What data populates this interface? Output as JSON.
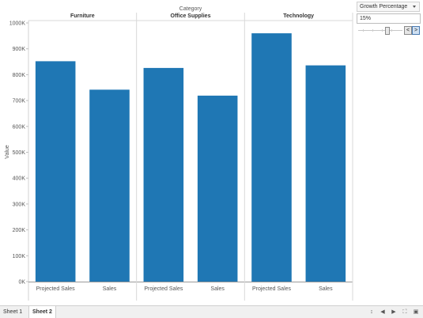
{
  "chart_data": {
    "type": "bar",
    "title": "Category",
    "ylabel": "Value",
    "ylim": [
      0,
      1000000
    ],
    "y_ticks": [
      "0K",
      "100K",
      "200K",
      "300K",
      "400K",
      "500K",
      "600K",
      "700K",
      "800K",
      "900K",
      "1000K"
    ],
    "panels": [
      {
        "name": "Furniture",
        "categories": [
          "Projected Sales",
          "Sales"
        ],
        "values": [
          852000,
          742000
        ]
      },
      {
        "name": "Office Supplies",
        "categories": [
          "Projected Sales",
          "Sales"
        ],
        "values": [
          826000,
          719000
        ]
      },
      {
        "name": "Technology",
        "categories": [
          "Projected Sales",
          "Sales"
        ],
        "values": [
          960000,
          836000
        ]
      }
    ],
    "bar_color": "#1f77b4",
    "grid": false
  },
  "parameter": {
    "title": "Growth Percentage",
    "value": "15%",
    "position_fraction": 0.65,
    "prev_glyph": "<",
    "next_glyph": ">"
  },
  "tabs": [
    {
      "label": "Sheet 1",
      "active": false
    },
    {
      "label": "Sheet 2",
      "active": true
    }
  ],
  "nav_icons": [
    "sort-icon",
    "prev-icon",
    "next-icon",
    "fit-icon",
    "presentation-icon"
  ],
  "nav_glyphs": [
    "↕",
    "◀",
    "▶",
    "⛶",
    "▣"
  ]
}
